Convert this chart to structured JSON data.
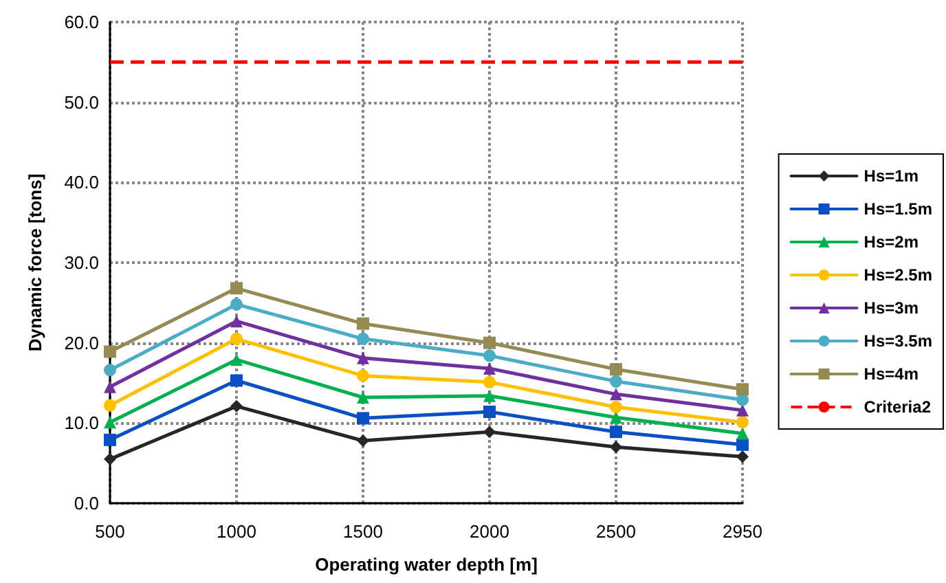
{
  "chart_data": {
    "type": "line",
    "xlabel": "Operating water depth [m]",
    "ylabel": "Dynamic force [tons]",
    "categories": [
      "500",
      "1000",
      "1500",
      "2000",
      "2500",
      "2950"
    ],
    "series": [
      {
        "name": "Hs=1m",
        "color": "#262626",
        "marker": "diamond",
        "values": [
          5.5,
          12.1,
          7.8,
          8.9,
          7.0,
          5.8
        ]
      },
      {
        "name": "Hs=1.5m",
        "color": "#0a4fc4",
        "marker": "square",
        "values": [
          7.9,
          15.3,
          10.6,
          11.4,
          8.9,
          7.3
        ]
      },
      {
        "name": "Hs=2m",
        "color": "#00b050",
        "marker": "triangle",
        "values": [
          10.1,
          17.9,
          13.2,
          13.4,
          10.7,
          8.7
        ]
      },
      {
        "name": "Hs=2.5m",
        "color": "#ffc000",
        "marker": "circle",
        "values": [
          12.2,
          20.5,
          15.9,
          15.1,
          12.0,
          10.1
        ]
      },
      {
        "name": "Hs=3m",
        "color": "#7030a0",
        "marker": "triangle",
        "values": [
          14.5,
          22.7,
          18.1,
          16.8,
          13.6,
          11.6
        ]
      },
      {
        "name": "Hs=3.5m",
        "color": "#4bacc6",
        "marker": "circle",
        "values": [
          16.6,
          24.8,
          20.5,
          18.4,
          15.2,
          12.9
        ]
      },
      {
        "name": "Hs=4m",
        "color": "#948a54",
        "marker": "square",
        "values": [
          18.9,
          26.8,
          22.4,
          20.0,
          16.7,
          14.2
        ]
      }
    ],
    "ref_lines": [
      {
        "axis": "y",
        "value": 55,
        "label": "Criteria2",
        "color": "#ff0000",
        "line_style": "dashed"
      }
    ],
    "ylim": [
      0,
      60
    ],
    "yticks": [
      {
        "value": 0,
        "label": "0.0"
      },
      {
        "value": 10,
        "label": "10.0"
      },
      {
        "value": 20,
        "label": "20.0"
      },
      {
        "value": 30,
        "label": "30.0"
      },
      {
        "value": 40,
        "label": "40.0"
      },
      {
        "value": 50,
        "label": "50.0"
      },
      {
        "value": 60,
        "label": "60.0"
      }
    ],
    "grid": true,
    "legend": "right",
    "line_style": "solid"
  }
}
